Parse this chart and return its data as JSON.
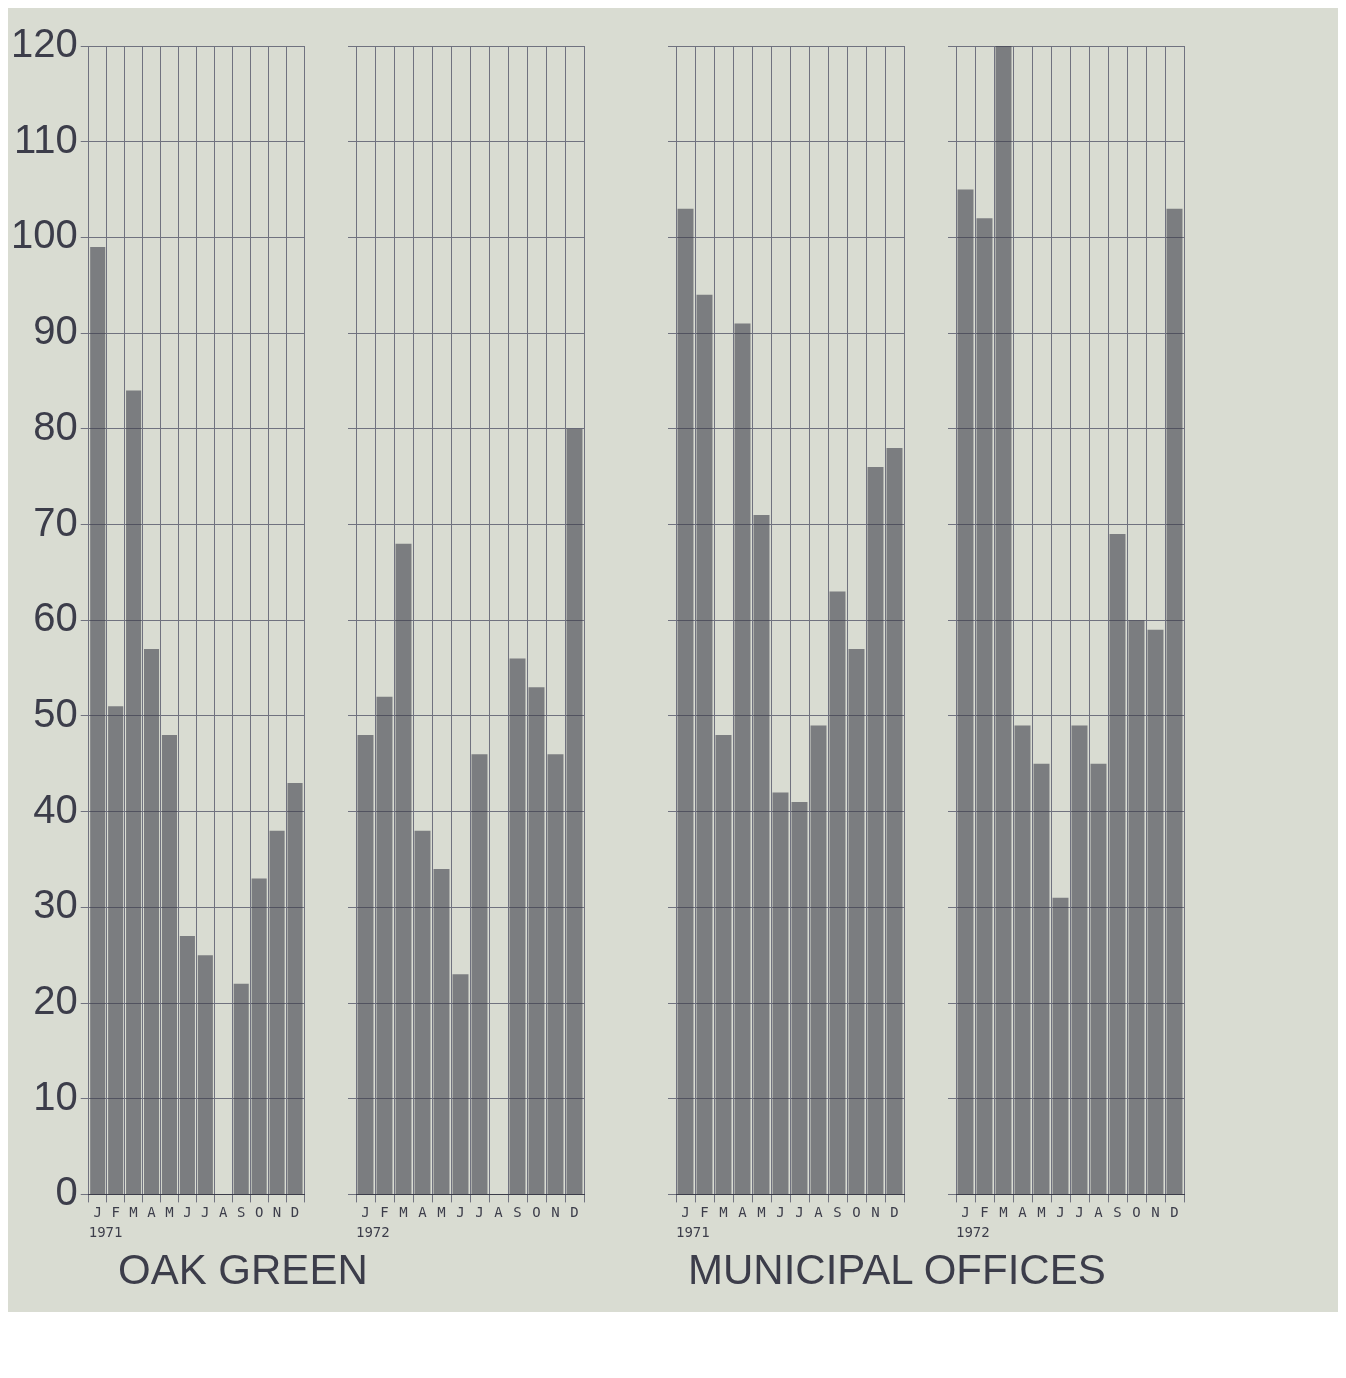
{
  "chart_data": [
    {
      "type": "bar",
      "categories": [
        "J",
        "F",
        "M",
        "A",
        "M",
        "J",
        "J",
        "A",
        "S",
        "O",
        "N",
        "D"
      ],
      "xlabel": "1971",
      "values": [
        99,
        51,
        84,
        57,
        48,
        27,
        25,
        null,
        22,
        33,
        38,
        43
      ],
      "color": "#3c3d4a",
      "ylim": [
        0,
        120
      ],
      "yticks": [
        0,
        10,
        20,
        30,
        40,
        50,
        60,
        70,
        80,
        90,
        100,
        110,
        120
      ],
      "grid": true,
      "legend": false,
      "annotations": [
        "OAK GREEN"
      ]
    },
    {
      "type": "bar",
      "categories": [
        "J",
        "F",
        "M",
        "A",
        "M",
        "J",
        "J",
        "A",
        "S",
        "O",
        "N",
        "D"
      ],
      "xlabel": "1972",
      "values": [
        48,
        52,
        68,
        38,
        34,
        23,
        46,
        null,
        56,
        53,
        46,
        80
      ],
      "color": "#3c3d4a",
      "ylim": [
        0,
        120
      ],
      "yticks": [
        0,
        10,
        20,
        30,
        40,
        50,
        60,
        70,
        80,
        90,
        100,
        110,
        120
      ],
      "grid": true,
      "legend": false,
      "tick_labels": "x"
    },
    {
      "type": "bar",
      "categories": [
        "J",
        "F",
        "M",
        "A",
        "M",
        "J",
        "J",
        "A",
        "S",
        "O",
        "N",
        "D"
      ],
      "xlabel": "1971",
      "values": [
        103,
        94,
        48,
        91,
        71,
        42,
        41,
        49,
        63,
        57,
        76,
        78
      ],
      "color": "#3c3d4a",
      "ylim": [
        0,
        120
      ],
      "yticks": [
        0,
        10,
        20,
        30,
        40,
        50,
        60,
        70,
        80,
        90,
        100,
        110,
        120
      ],
      "grid": true,
      "legend": false,
      "tick_labels": "x",
      "annotations": [
        "MUNICIPAL OFFICES"
      ]
    },
    {
      "type": "bar",
      "categories": [
        "J",
        "F",
        "M",
        "A",
        "M",
        "J",
        "J",
        "A",
        "S",
        "O",
        "N",
        "D"
      ],
      "xlabel": "1972",
      "values": [
        105,
        102,
        120,
        49,
        45,
        31,
        49,
        45,
        69,
        60,
        59,
        103
      ],
      "color": "#3c3d4a",
      "ylim": [
        0,
        120
      ],
      "yticks": [
        0,
        10,
        20,
        30,
        40,
        50,
        60,
        70,
        80,
        90,
        100,
        110,
        120
      ],
      "grid": true,
      "legend": false,
      "tick_labels": "x"
    }
  ]
}
